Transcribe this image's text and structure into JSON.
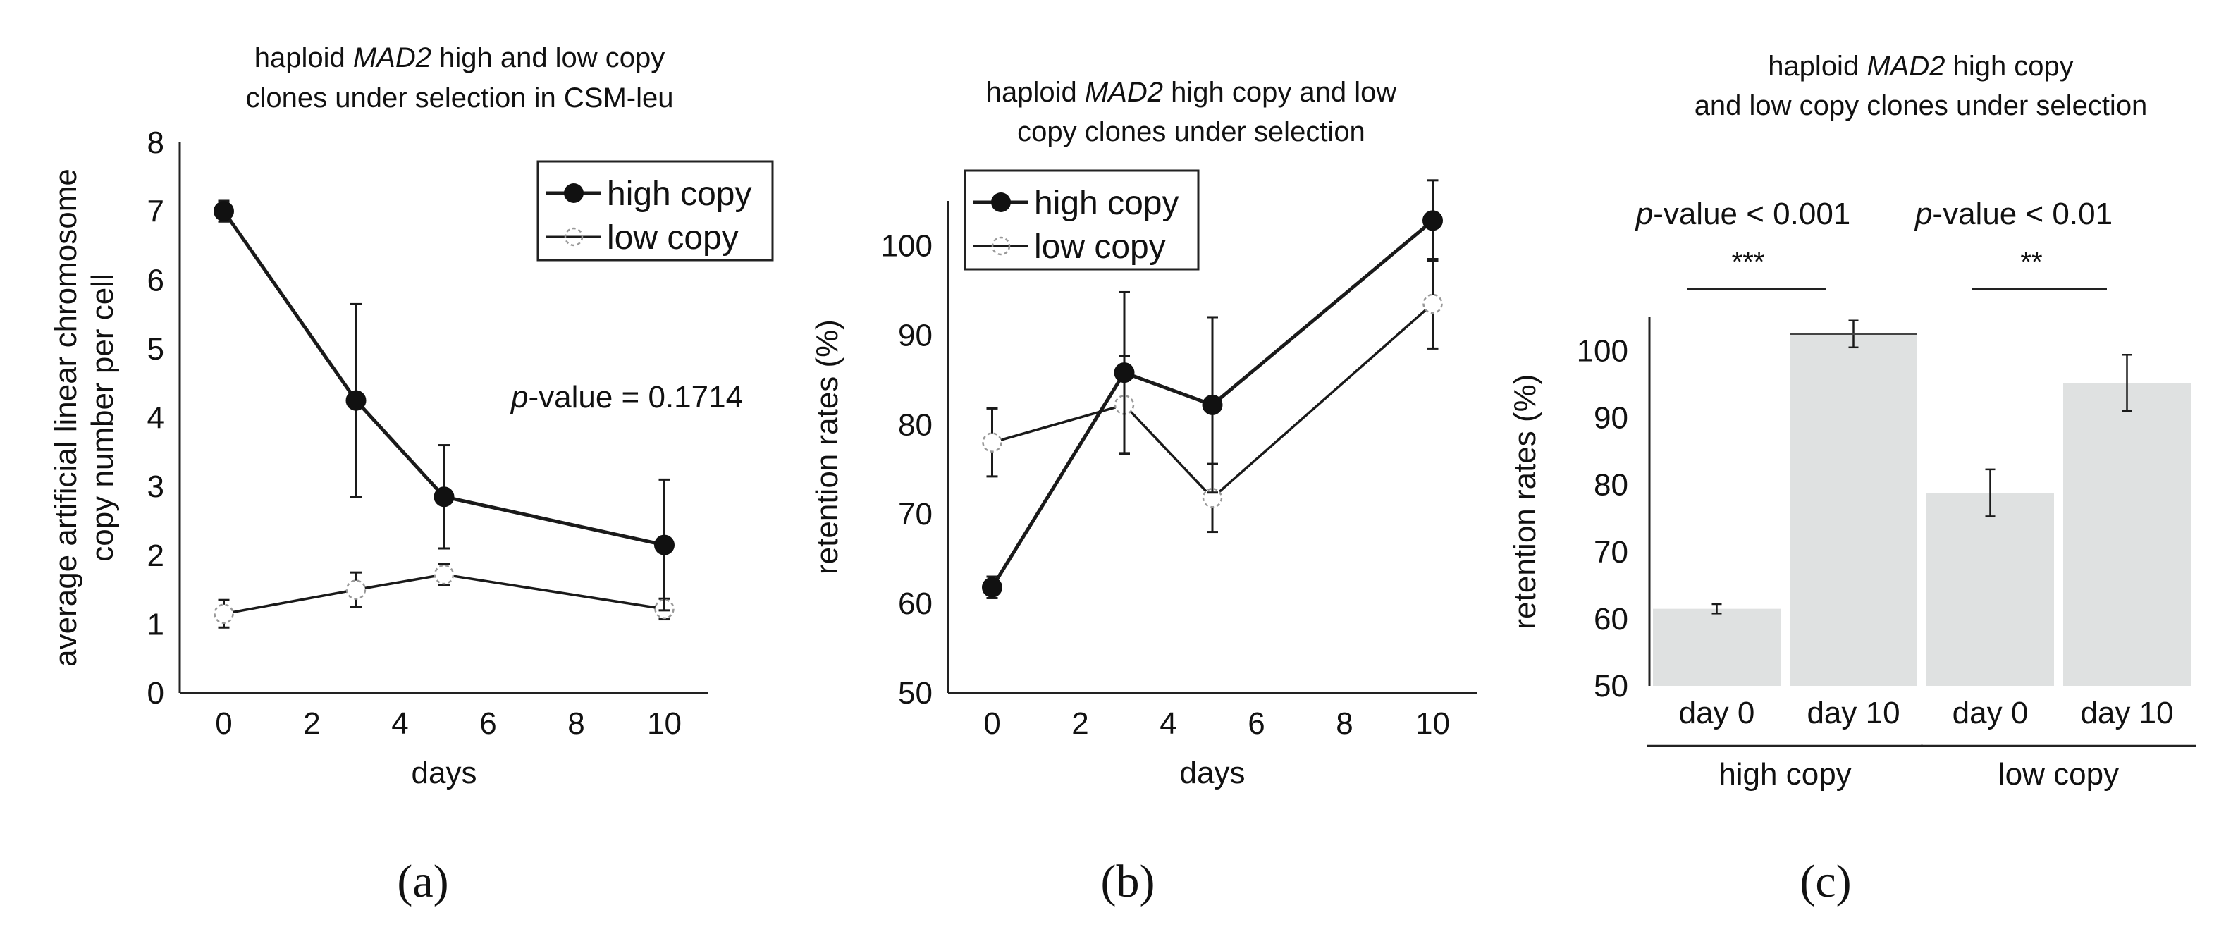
{
  "panels": {
    "a": {
      "label": "(a)",
      "title_parts": [
        "haploid ",
        "MAD2",
        " high and low copy"
      ],
      "title_line2": "clones under selection in CSM-leu",
      "pvalue_italic": "p",
      "pvalue_rest": "-value = 0.1714"
    },
    "b": {
      "label": "(b)",
      "title_parts": [
        "haploid ",
        "MAD2",
        " high copy and low"
      ],
      "title_line2": "copy clones under selection"
    },
    "c": {
      "label": "(c)",
      "title_parts": [
        "haploid ",
        "MAD2",
        " high copy"
      ],
      "title_line2": "and low copy clones under selection",
      "sig1_italic": "p",
      "sig1_rest": "-value < 0.001",
      "sig1_stars": "***",
      "sig2_italic": "p",
      "sig2_rest": "-value < 0.01",
      "sig2_stars": "**"
    }
  },
  "chart_data": [
    {
      "type": "line",
      "xlabel": "days",
      "ylabel_lines": [
        "average artificial linear chromosome",
        "copy number per cell"
      ],
      "xlim": [
        -1,
        11
      ],
      "ylim": [
        0,
        8
      ],
      "xticks": [
        0,
        2,
        4,
        6,
        8,
        10
      ],
      "yticks": [
        0,
        1,
        2,
        3,
        4,
        5,
        6,
        7,
        8
      ],
      "legend_position": "top-right",
      "x": [
        0,
        3,
        5,
        10
      ],
      "series": [
        {
          "name": "high copy",
          "values": [
            7.0,
            4.25,
            2.85,
            2.15
          ],
          "errors": [
            0.15,
            1.4,
            0.75,
            0.95
          ],
          "style": "filled"
        },
        {
          "name": "low copy",
          "values": [
            1.15,
            1.5,
            1.72,
            1.22
          ],
          "errors": [
            0.2,
            0.25,
            0.15,
            0.15
          ],
          "style": "open"
        }
      ]
    },
    {
      "type": "line",
      "xlabel": "days",
      "ylabel": "retention rates (%)",
      "xlim": [
        -1,
        11
      ],
      "ylim": [
        50,
        105
      ],
      "xticks": [
        0,
        2,
        4,
        6,
        8,
        10
      ],
      "yticks": [
        50,
        60,
        70,
        80,
        90,
        100
      ],
      "legend_position": "top-left",
      "x": [
        0,
        3,
        5,
        10
      ],
      "series": [
        {
          "name": "high copy",
          "values": [
            61.8,
            85.8,
            82.2,
            102.8
          ],
          "errors": [
            1.2,
            9.0,
            9.8,
            4.5
          ],
          "style": "filled"
        },
        {
          "name": "low copy",
          "values": [
            78.0,
            82.2,
            71.8,
            93.5
          ],
          "errors": [
            3.8,
            5.5,
            3.8,
            5.0
          ],
          "style": "open"
        }
      ]
    },
    {
      "type": "bar",
      "ylabel": "retention rates (%)",
      "ylim": [
        50,
        105
      ],
      "yticks": [
        50,
        60,
        70,
        80,
        90,
        100
      ],
      "categories": [
        "day 0",
        "day 10",
        "day 0",
        "day 10"
      ],
      "groups": [
        {
          "label": "high copy",
          "span": [
            0,
            1
          ]
        },
        {
          "label": "low copy",
          "span": [
            2,
            3
          ]
        }
      ],
      "values": [
        61.5,
        102.5,
        78.8,
        95.2
      ],
      "errors": [
        0.7,
        2.0,
        3.5,
        4.2
      ],
      "bar_color": "#dfe1e1"
    }
  ]
}
